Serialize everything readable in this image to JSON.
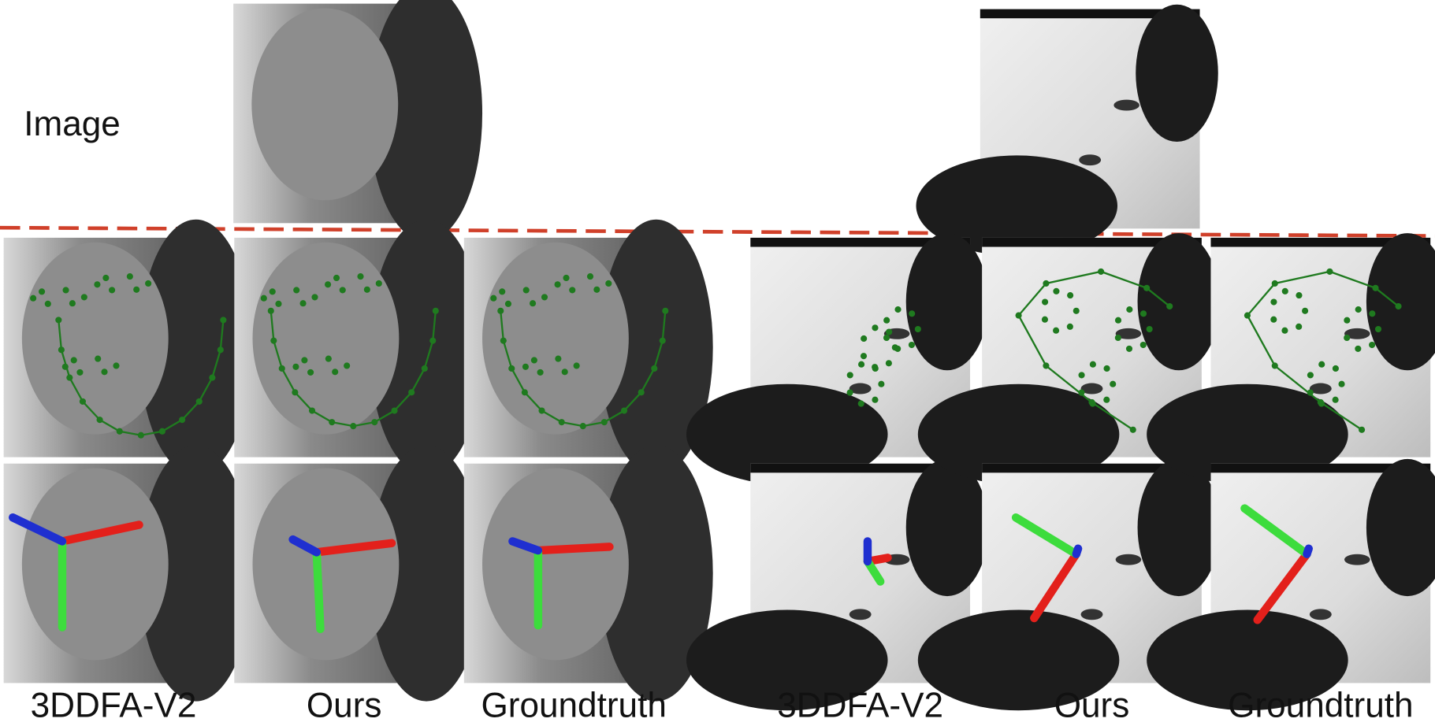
{
  "row_label": "Image",
  "groups": [
    {
      "columns": [
        "3DDFA-V2",
        "Ours",
        "Groundtruth"
      ]
    },
    {
      "columns": [
        "3DDFA-V2",
        "Ours",
        "Groundtruth"
      ]
    }
  ]
}
